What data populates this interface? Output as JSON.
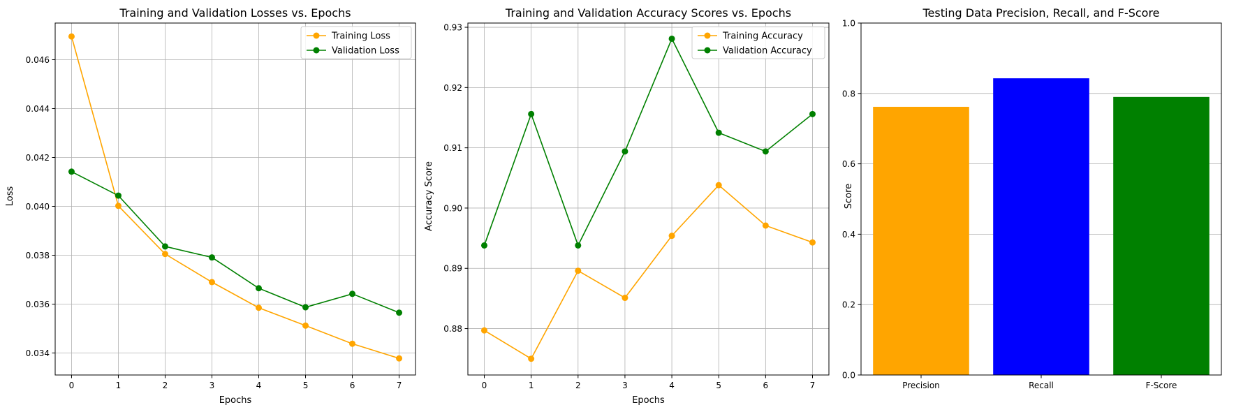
{
  "chart_data": [
    {
      "type": "line",
      "title": "Training and Validation Losses vs. Epochs",
      "xlabel": "Epochs",
      "ylabel": "Loss",
      "x": [
        0,
        1,
        2,
        3,
        4,
        5,
        6,
        7
      ],
      "xlim": [
        -0.35,
        7.35
      ],
      "ylim": [
        0.0331,
        0.0475
      ],
      "xticks": [
        0,
        1,
        2,
        3,
        4,
        5,
        6,
        7
      ],
      "xtick_labels": [
        "0",
        "1",
        "2",
        "3",
        "4",
        "5",
        "6",
        "7"
      ],
      "yticks": [
        0.034,
        0.036,
        0.038,
        0.04,
        0.042,
        0.044,
        0.046
      ],
      "ytick_labels": [
        "0.034",
        "0.036",
        "0.038",
        "0.040",
        "0.042",
        "0.044",
        "0.046"
      ],
      "grid": true,
      "legend_position": "top-right",
      "series": [
        {
          "name": "Training Loss",
          "color": "#ffa500",
          "values": [
            0.04695,
            0.04002,
            0.03805,
            0.0369,
            0.03585,
            0.03512,
            0.03438,
            0.03378
          ]
        },
        {
          "name": "Validation Loss",
          "color": "#008000",
          "values": [
            0.04142,
            0.04044,
            0.03836,
            0.03791,
            0.03665,
            0.03587,
            0.03642,
            0.03565
          ]
        }
      ]
    },
    {
      "type": "line",
      "title": "Training and Validation Accuracy Scores vs. Epochs",
      "xlabel": "Epochs",
      "ylabel": "Accuracy Score",
      "x": [
        0,
        1,
        2,
        3,
        4,
        5,
        6,
        7
      ],
      "xlim": [
        -0.35,
        7.35
      ],
      "ylim": [
        0.8723,
        0.9307
      ],
      "xticks": [
        0,
        1,
        2,
        3,
        4,
        5,
        6,
        7
      ],
      "xtick_labels": [
        "0",
        "1",
        "2",
        "3",
        "4",
        "5",
        "6",
        "7"
      ],
      "yticks": [
        0.88,
        0.89,
        0.9,
        0.91,
        0.92,
        0.93
      ],
      "ytick_labels": [
        "0.88",
        "0.89",
        "0.90",
        "0.91",
        "0.92",
        "0.93"
      ],
      "grid": true,
      "legend_position": "top-right",
      "series": [
        {
          "name": "Training Accuracy",
          "color": "#ffa500",
          "values": [
            0.8797,
            0.875,
            0.8896,
            0.8851,
            0.8954,
            0.9038,
            0.8971,
            0.8943
          ]
        },
        {
          "name": "Validation Accuracy",
          "color": "#008000",
          "values": [
            0.8938,
            0.9156,
            0.8938,
            0.9094,
            0.9281,
            0.9125,
            0.9094,
            0.9156
          ]
        }
      ]
    },
    {
      "type": "bar",
      "title": "Testing Data Precision, Recall, and F-Score",
      "xlabel": "",
      "ylabel": "Score",
      "categories": [
        "Precision",
        "Recall",
        "F-Score"
      ],
      "values": [
        0.762,
        0.843,
        0.79
      ],
      "colors": [
        "#ffa500",
        "#0000ff",
        "#008000"
      ],
      "ylim": [
        0,
        1.0
      ],
      "yticks": [
        0.0,
        0.2,
        0.4,
        0.6,
        0.8,
        1.0
      ],
      "ytick_labels": [
        "0.0",
        "0.2",
        "0.4",
        "0.6",
        "0.8",
        "1.0"
      ],
      "grid": "y"
    }
  ]
}
